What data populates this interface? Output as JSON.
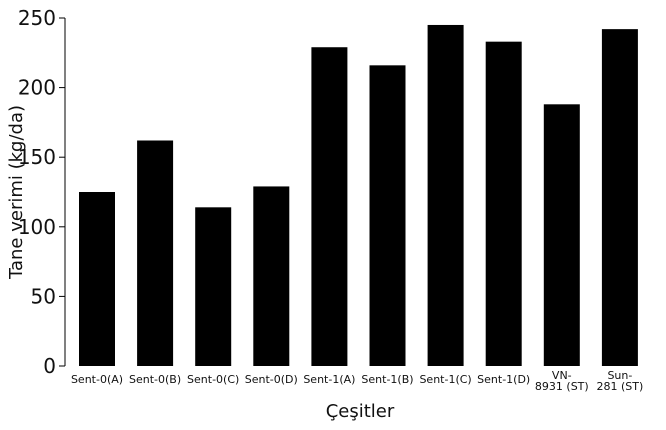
{
  "chart_data": {
    "type": "bar",
    "categories": [
      "Sent-0(A)",
      "Sent-0(B)",
      "Sent-0(C)",
      "Sent-0(D)",
      "Sent-1(A)",
      "Sent-1(B)",
      "Sent-1(C)",
      "Sent-1(D)",
      "VN-\n8931 (ST)",
      "Sun-\n281 (ST)"
    ],
    "values": [
      125,
      162,
      114,
      129,
      229,
      216,
      245,
      233,
      188,
      242
    ],
    "title": "",
    "xlabel": "Çeşitler",
    "ylabel": "Tane verimi (kg/da)",
    "ylim": [
      0,
      250
    ],
    "yticks": [
      0,
      50,
      100,
      150,
      200,
      250
    ],
    "grid": false,
    "bar_color": "#000000"
  }
}
